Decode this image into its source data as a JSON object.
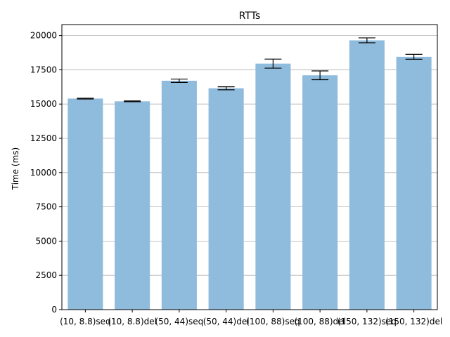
{
  "chart_data": {
    "type": "bar",
    "title": "RTTs",
    "xlabel": "",
    "ylabel": "Time (ms)",
    "ylim": [
      0,
      20800
    ],
    "yticks": [
      0,
      2500,
      5000,
      7500,
      10000,
      12500,
      15000,
      17500,
      20000
    ],
    "grid": "y",
    "categories": [
      "(10, 8.8)seq",
      "(10, 8.8)del",
      "(50, 44)seq",
      "(50, 44)del",
      "(100, 88)seq",
      "(100, 88)del",
      "(150, 132)seq",
      "(150, 132)del"
    ],
    "values": [
      15400,
      15200,
      16700,
      16150,
      17950,
      17100,
      19650,
      18450
    ],
    "errors": [
      30,
      30,
      120,
      110,
      330,
      320,
      180,
      180
    ],
    "bar_color": "#8fbbdc"
  }
}
